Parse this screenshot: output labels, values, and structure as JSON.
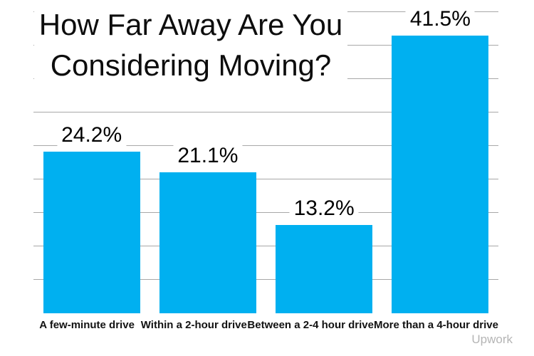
{
  "title_lines": [
    "How Far Away Are You",
    "Considering Moving?"
  ],
  "watermark": "Upwork",
  "colors": {
    "bar": "#00B0F0",
    "gridline": "#A8A8A8",
    "title": "#0D0D0D",
    "value_label": "#000000",
    "category_label": "#121212",
    "watermark": "#B5B5B5",
    "background": "#FFFFFF"
  },
  "chart_data": {
    "type": "bar",
    "title": "How Far Away Are You Considering Moving?",
    "categories": [
      "A few-minute drive",
      "Within a 2-hour drive",
      "Between a 2-4 hour drive",
      "More than a 4-hour drive"
    ],
    "values": [
      24.2,
      21.1,
      13.2,
      41.5
    ],
    "value_labels": [
      "24.2%",
      "21.1%",
      "13.2%",
      "41.5%"
    ],
    "xlabel": "",
    "ylabel": "",
    "ylim": [
      0,
      45
    ],
    "gridline_step": 5,
    "grid": true,
    "legend": false,
    "axis_line": false,
    "value_labels_position": "above-bar"
  }
}
